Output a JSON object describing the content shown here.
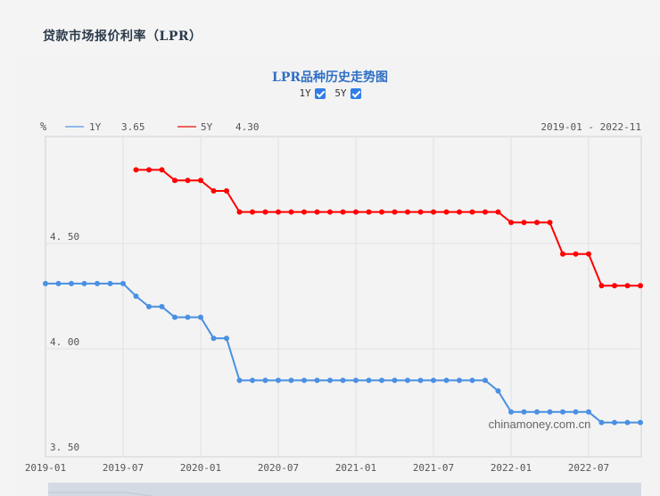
{
  "page": {
    "title": "贷款市场报价利率（LPR）"
  },
  "chart_panel": {
    "title": "LPR品种历史走势图",
    "toggles": [
      {
        "label": "1Y",
        "checked": true
      },
      {
        "label": "5Y",
        "checked": true
      }
    ],
    "unit_label": "%",
    "legend": [
      {
        "name": "1Y",
        "latest": "3.65",
        "color": "#4a90e2"
      },
      {
        "name": "5Y",
        "latest": "4.30",
        "color": "#ff0000"
      }
    ],
    "range_label": "2019-01 - 2022-11",
    "watermark": "chinamoney.com.cn"
  },
  "chart_data": {
    "type": "line",
    "title": "LPR品种历史走势图",
    "xlabel": "",
    "ylabel": "%",
    "ylim": [
      3.5,
      4.9
    ],
    "yticks": [
      "3.50",
      "4.00",
      "4.50"
    ],
    "xticks": [
      "2019-01",
      "2019-07",
      "2020-01",
      "2020-07",
      "2021-01",
      "2021-07",
      "2022-01",
      "2022-07"
    ],
    "grid": true,
    "legend_position": "top-left",
    "x": [
      "2019-01",
      "2019-02",
      "2019-03",
      "2019-04",
      "2019-05",
      "2019-06",
      "2019-07",
      "2019-08",
      "2019-09",
      "2019-10",
      "2019-11",
      "2019-12",
      "2020-01",
      "2020-02",
      "2020-03",
      "2020-04",
      "2020-05",
      "2020-06",
      "2020-07",
      "2020-08",
      "2020-09",
      "2020-10",
      "2020-11",
      "2020-12",
      "2021-01",
      "2021-02",
      "2021-03",
      "2021-04",
      "2021-05",
      "2021-06",
      "2021-07",
      "2021-08",
      "2021-09",
      "2021-10",
      "2021-11",
      "2021-12",
      "2022-01",
      "2022-02",
      "2022-03",
      "2022-04",
      "2022-05",
      "2022-06",
      "2022-07",
      "2022-08",
      "2022-09",
      "2022-10",
      "2022-11"
    ],
    "series": [
      {
        "name": "1Y",
        "color": "#4a90e2",
        "values": [
          4.31,
          4.31,
          4.31,
          4.31,
          4.31,
          4.31,
          4.31,
          4.25,
          4.2,
          4.2,
          4.15,
          4.15,
          4.15,
          4.05,
          4.05,
          3.85,
          3.85,
          3.85,
          3.85,
          3.85,
          3.85,
          3.85,
          3.85,
          3.85,
          3.85,
          3.85,
          3.85,
          3.85,
          3.85,
          3.85,
          3.85,
          3.85,
          3.85,
          3.85,
          3.85,
          3.8,
          3.7,
          3.7,
          3.7,
          3.7,
          3.7,
          3.7,
          3.7,
          3.65,
          3.65,
          3.65,
          3.65
        ]
      },
      {
        "name": "5Y",
        "color": "#ff0000",
        "values": [
          null,
          null,
          null,
          null,
          null,
          null,
          null,
          4.85,
          4.85,
          4.85,
          4.8,
          4.8,
          4.8,
          4.75,
          4.75,
          4.65,
          4.65,
          4.65,
          4.65,
          4.65,
          4.65,
          4.65,
          4.65,
          4.65,
          4.65,
          4.65,
          4.65,
          4.65,
          4.65,
          4.65,
          4.65,
          4.65,
          4.65,
          4.65,
          4.65,
          4.65,
          4.6,
          4.6,
          4.6,
          4.6,
          4.45,
          4.45,
          4.45,
          4.3,
          4.3,
          4.3,
          4.3
        ]
      }
    ]
  }
}
